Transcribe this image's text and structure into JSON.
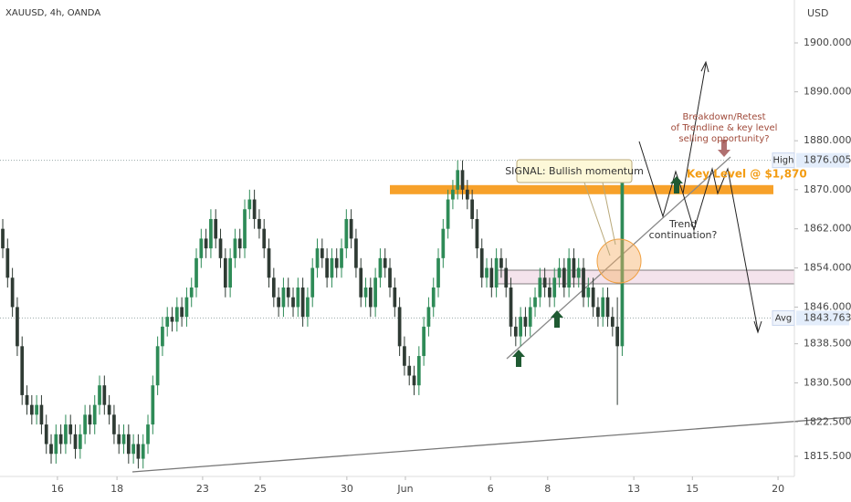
{
  "chart_data": {
    "type": "candlestick",
    "title": "XAUUSD, 4h, OANDA",
    "y_axis_label": "USD",
    "colors": {
      "up": "#2e8b57",
      "down": "#2f3b34"
    },
    "xlim": [
      -0.57,
      163.58
    ],
    "ylim": [
      1811.38,
      1908.77
    ],
    "xticks": [
      {
        "value": 11.3,
        "label": "16"
      },
      {
        "value": 23.6,
        "label": "18"
      },
      {
        "value": 41.3,
        "label": "23"
      },
      {
        "value": 53.2,
        "label": "25"
      },
      {
        "value": 71.1,
        "label": "30"
      },
      {
        "value": 83.2,
        "label": "Jun"
      },
      {
        "value": 100.8,
        "label": "6"
      },
      {
        "value": 112.6,
        "label": "8"
      },
      {
        "value": 130.4,
        "label": "13"
      },
      {
        "value": 142.5,
        "label": "15"
      },
      {
        "value": 160.2,
        "label": "20"
      }
    ],
    "yticks": [
      {
        "value": 1815.5,
        "label": "1815.500"
      },
      {
        "value": 1822.5,
        "label": "1822.500"
      },
      {
        "value": 1830.5,
        "label": "1830.500"
      },
      {
        "value": 1838.5,
        "label": "1838.500"
      },
      {
        "value": 1846,
        "label": "1846.000"
      },
      {
        "value": 1854,
        "label": "1854.000"
      },
      {
        "value": 1862,
        "label": "1862.000"
      },
      {
        "value": 1870,
        "label": "1870.000"
      },
      {
        "value": 1880,
        "label": "1880.000"
      },
      {
        "value": 1890,
        "label": "1890.000"
      },
      {
        "value": 1900,
        "label": "1900.000"
      }
    ],
    "price_lines": [
      {
        "name": "High",
        "value": 1876.005,
        "label": "1876.005"
      },
      {
        "name": "Avg",
        "value": 1843.763,
        "label": "1843.763"
      }
    ],
    "key_level": {
      "value": 1870,
      "label": "Key Level @ $1,870"
    },
    "annotations": {
      "signal": "SIGNAL: Bullish momentum",
      "trend": [
        "Trend",
        "continuation?"
      ],
      "breakdown": [
        "Breakdown/Retest",
        "of Trendline & key level",
        "selling opportunity?"
      ]
    },
    "x": [
      0,
      1,
      2,
      3,
      4,
      5,
      6,
      7,
      8,
      9,
      10,
      11,
      12,
      13,
      14,
      15,
      16,
      17,
      18,
      19,
      20,
      21,
      22,
      23,
      24,
      25,
      26,
      27,
      28,
      29,
      30,
      31,
      32,
      33,
      34,
      35,
      36,
      37,
      38,
      39,
      40,
      41,
      42,
      43,
      44,
      45,
      46,
      47,
      48,
      49,
      50,
      51,
      52,
      53,
      54,
      55,
      56,
      57,
      58,
      59,
      60,
      61,
      62,
      63,
      64,
      65,
      66,
      67,
      68,
      69,
      70,
      71,
      72,
      73,
      74,
      75,
      76,
      77,
      78,
      79,
      80,
      81,
      82,
      83,
      84,
      85,
      86,
      87,
      88,
      89,
      90,
      91,
      92,
      93,
      94,
      95,
      96,
      97,
      98,
      99,
      100,
      101,
      102,
      103,
      104,
      105,
      106,
      107,
      108,
      109,
      110,
      111,
      112,
      113,
      114,
      115,
      116,
      117,
      118,
      119,
      120,
      121,
      122,
      123,
      124,
      125,
      126,
      127,
      128
    ],
    "open": [
      1862,
      1858,
      1852,
      1846,
      1838,
      1828,
      1826,
      1824,
      1826,
      1822,
      1818,
      1816,
      1820,
      1818,
      1822,
      1820,
      1817,
      1820,
      1824,
      1822,
      1826,
      1830,
      1826,
      1824,
      1820,
      1818,
      1820,
      1816,
      1818,
      1815,
      1818,
      1822,
      1830,
      1838,
      1842,
      1844,
      1843,
      1846,
      1844,
      1848,
      1850,
      1856,
      1860,
      1858,
      1864,
      1860,
      1856,
      1850,
      1856,
      1860,
      1858,
      1866,
      1868,
      1864,
      1862,
      1858,
      1852,
      1848,
      1846,
      1850,
      1848,
      1846,
      1850,
      1844,
      1848,
      1854,
      1858,
      1856,
      1852,
      1856,
      1854,
      1858,
      1864,
      1860,
      1854,
      1848,
      1850,
      1846,
      1852,
      1856,
      1854,
      1850,
      1846,
      1838,
      1834,
      1832,
      1830,
      1836,
      1842,
      1846,
      1850,
      1856,
      1862,
      1868,
      1870,
      1874,
      1870,
      1868,
      1864,
      1858,
      1852,
      1854,
      1850,
      1856,
      1854,
      1850,
      1842,
      1840,
      1844,
      1842,
      1846,
      1848,
      1852,
      1850,
      1848,
      1852,
      1854,
      1850,
      1856,
      1852,
      1854,
      1848,
      1850,
      1846,
      1844,
      1848,
      1844,
      1842,
      1838
    ],
    "high": [
      1864,
      1860,
      1854,
      1848,
      1840,
      1830,
      1828,
      1828,
      1828,
      1824,
      1820,
      1822,
      1822,
      1824,
      1824,
      1822,
      1822,
      1826,
      1826,
      1828,
      1832,
      1832,
      1828,
      1826,
      1822,
      1822,
      1822,
      1820,
      1820,
      1820,
      1824,
      1832,
      1840,
      1844,
      1846,
      1846,
      1848,
      1848,
      1850,
      1852,
      1858,
      1862,
      1862,
      1866,
      1866,
      1862,
      1858,
      1858,
      1862,
      1862,
      1868,
      1870,
      1870,
      1866,
      1864,
      1860,
      1854,
      1850,
      1852,
      1852,
      1850,
      1852,
      1852,
      1850,
      1856,
      1860,
      1860,
      1858,
      1858,
      1858,
      1860,
      1866,
      1866,
      1862,
      1856,
      1852,
      1852,
      1854,
      1858,
      1858,
      1856,
      1852,
      1848,
      1840,
      1836,
      1834,
      1838,
      1844,
      1848,
      1852,
      1858,
      1864,
      1870,
      1872,
      1876,
      1876,
      1872,
      1870,
      1866,
      1860,
      1856,
      1856,
      1858,
      1858,
      1856,
      1852,
      1844,
      1846,
      1846,
      1848,
      1850,
      1854,
      1854,
      1852,
      1854,
      1856,
      1856,
      1858,
      1858,
      1856,
      1856,
      1852,
      1852,
      1848,
      1850,
      1850,
      1846,
      1848,
      1876
    ],
    "low": [
      1856,
      1850,
      1844,
      1836,
      1826,
      1824,
      1822,
      1822,
      1820,
      1816,
      1814,
      1814,
      1816,
      1816,
      1818,
      1815,
      1815,
      1818,
      1820,
      1820,
      1824,
      1824,
      1822,
      1818,
      1816,
      1816,
      1814,
      1814,
      1813,
      1813,
      1816,
      1820,
      1828,
      1836,
      1840,
      1841,
      1841,
      1842,
      1842,
      1846,
      1848,
      1854,
      1856,
      1856,
      1858,
      1854,
      1848,
      1848,
      1854,
      1856,
      1856,
      1864,
      1862,
      1860,
      1856,
      1850,
      1846,
      1844,
      1844,
      1846,
      1844,
      1844,
      1842,
      1842,
      1846,
      1852,
      1854,
      1850,
      1850,
      1852,
      1852,
      1856,
      1858,
      1852,
      1846,
      1846,
      1844,
      1844,
      1850,
      1852,
      1848,
      1844,
      1836,
      1832,
      1830,
      1828,
      1828,
      1834,
      1840,
      1844,
      1848,
      1854,
      1860,
      1866,
      1868,
      1868,
      1866,
      1862,
      1856,
      1850,
      1850,
      1848,
      1848,
      1852,
      1848,
      1840,
      1838,
      1838,
      1840,
      1840,
      1844,
      1846,
      1848,
      1846,
      1846,
      1850,
      1848,
      1848,
      1850,
      1850,
      1846,
      1846,
      1844,
      1842,
      1842,
      1842,
      1840,
      1826,
      1836
    ],
    "close": [
      1858,
      1852,
      1846,
      1838,
      1828,
      1826,
      1824,
      1826,
      1822,
      1818,
      1816,
      1820,
      1818,
      1822,
      1820,
      1817,
      1820,
      1824,
      1822,
      1826,
      1830,
      1826,
      1824,
      1820,
      1818,
      1820,
      1816,
      1818,
      1815,
      1818,
      1822,
      1830,
      1838,
      1842,
      1844,
      1843,
      1846,
      1844,
      1848,
      1850,
      1856,
      1860,
      1858,
      1864,
      1860,
      1856,
      1850,
      1856,
      1860,
      1858,
      1866,
      1868,
      1864,
      1862,
      1858,
      1852,
      1848,
      1846,
      1850,
      1848,
      1846,
      1850,
      1844,
      1848,
      1854,
      1858,
      1856,
      1852,
      1856,
      1854,
      1858,
      1864,
      1860,
      1854,
      1848,
      1850,
      1846,
      1852,
      1856,
      1854,
      1850,
      1846,
      1838,
      1834,
      1832,
      1830,
      1836,
      1842,
      1846,
      1850,
      1856,
      1862,
      1868,
      1870,
      1874,
      1870,
      1868,
      1864,
      1858,
      1852,
      1854,
      1850,
      1856,
      1854,
      1850,
      1842,
      1840,
      1844,
      1842,
      1846,
      1848,
      1852,
      1850,
      1848,
      1852,
      1854,
      1850,
      1856,
      1852,
      1854,
      1848,
      1850,
      1846,
      1844,
      1848,
      1844,
      1842,
      1838,
      1874
    ]
  }
}
